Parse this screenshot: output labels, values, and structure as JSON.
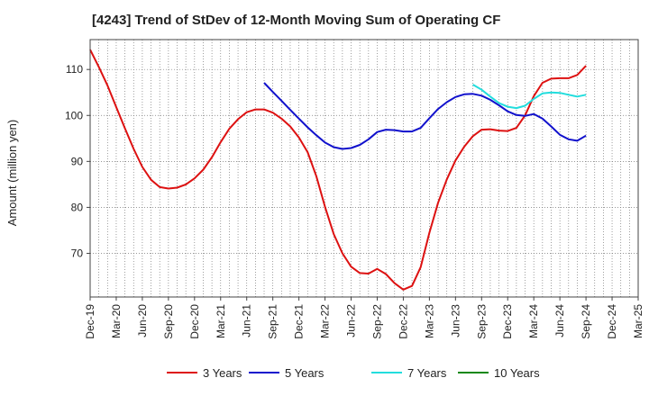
{
  "chart_data": {
    "type": "line",
    "title": "[4243]  Trend of StDev of 12-Month Moving Sum of Operating CF",
    "xlabel": "",
    "ylabel": "Amount (million yen)",
    "ylim": [
      60.5,
      116.5
    ],
    "yticks": [
      70,
      80,
      90,
      100,
      110
    ],
    "x_start": "Dec-19",
    "xticks": [
      "Dec-19",
      "Mar-20",
      "Jun-20",
      "Sep-20",
      "Dec-20",
      "Mar-21",
      "Jun-21",
      "Sep-21",
      "Dec-21",
      "Mar-22",
      "Jun-22",
      "Sep-22",
      "Dec-22",
      "Mar-23",
      "Jun-23",
      "Sep-23",
      "Dec-23",
      "Mar-24",
      "Jun-24",
      "Sep-24",
      "Dec-24",
      "Mar-25"
    ],
    "grid": true,
    "legend_position": "bottom",
    "series": [
      {
        "name": "3 Years",
        "color": "#dd1111",
        "start_index": 0,
        "values": [
          114.3,
          110.5,
          106.5,
          101.8,
          97.2,
          92.7,
          88.8,
          86.0,
          84.4,
          84.1,
          84.3,
          85.0,
          86.3,
          88.2,
          90.9,
          94.2,
          97.1,
          99.2,
          100.7,
          101.3,
          101.3,
          100.6,
          99.3,
          97.6,
          95.2,
          92.0,
          86.8,
          80.1,
          74.2,
          70.0,
          67.1,
          65.7,
          65.6,
          66.6,
          65.5,
          63.5,
          62.1,
          62.9,
          67.0,
          74.5,
          81.0,
          86.1,
          90.2,
          93.2,
          95.5,
          96.9,
          97.0,
          96.7,
          96.6,
          97.3,
          100.0,
          104.2,
          107.1,
          108.0,
          108.1,
          108.1,
          108.8,
          110.8
        ]
      },
      {
        "name": "5 Years",
        "color": "#1111cc",
        "start_index": 20,
        "values": [
          107.1,
          105.1,
          103.2,
          101.2,
          99.3,
          97.4,
          95.7,
          94.1,
          93.1,
          92.7,
          92.9,
          93.6,
          94.8,
          96.4,
          96.9,
          96.8,
          96.5,
          96.5,
          97.3,
          99.4,
          101.4,
          102.9,
          104.0,
          104.6,
          104.7,
          104.3,
          103.4,
          102.2,
          100.9,
          100.1,
          99.9,
          100.3,
          99.3,
          97.6,
          95.8,
          94.8,
          94.5,
          95.6
        ]
      },
      {
        "name": "7 Years",
        "color": "#22dddd",
        "start_index": 44,
        "values": [
          106.7,
          105.6,
          104.1,
          102.7,
          101.9,
          101.6,
          102.1,
          103.6,
          104.8,
          105.0,
          104.9,
          104.5,
          104.1,
          104.5
        ]
      },
      {
        "name": "10 Years",
        "color": "#118811",
        "start_index": 0,
        "values": []
      }
    ]
  }
}
